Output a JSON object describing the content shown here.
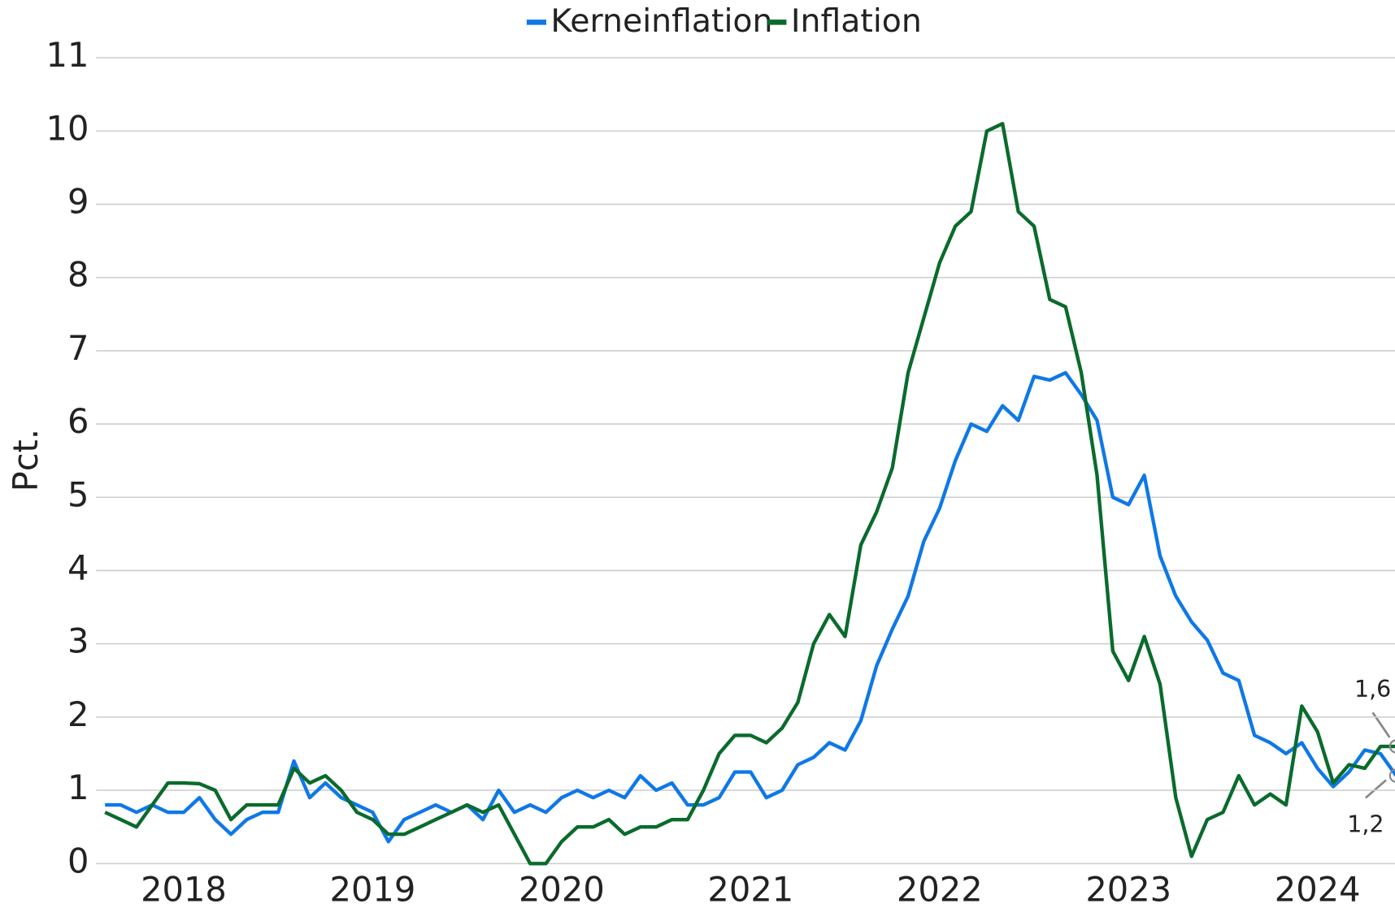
{
  "chart_data": {
    "type": "line",
    "y_label": "Pct.",
    "categories": [
      null,
      null,
      null,
      null,
      null,
      "2018",
      null,
      null,
      null,
      null,
      null,
      null,
      null,
      null,
      null,
      null,
      null,
      "2019",
      null,
      null,
      null,
      null,
      null,
      null,
      null,
      null,
      null,
      null,
      null,
      "2020",
      null,
      null,
      null,
      null,
      null,
      null,
      null,
      null,
      null,
      null,
      null,
      "2021",
      null,
      null,
      null,
      null,
      null,
      null,
      null,
      null,
      null,
      null,
      null,
      "2022",
      null,
      null,
      null,
      null,
      null,
      null,
      null,
      null,
      null,
      null,
      null,
      "2023",
      null,
      null,
      null,
      null,
      null,
      null,
      null,
      null,
      null,
      null,
      null,
      "2024",
      null,
      null,
      null,
      null,
      null
    ],
    "series": [
      {
        "name": "Kerneinflation",
        "color": "#0f78e6",
        "values": [
          0.8,
          0.8,
          0.7,
          0.8,
          0.7,
          0.7,
          0.9,
          0.6,
          0.4,
          0.6,
          0.7,
          0.7,
          1.4,
          0.9,
          1.1,
          0.9,
          0.8,
          0.7,
          0.3,
          0.6,
          0.7,
          0.8,
          0.7,
          0.8,
          0.6,
          1.0,
          0.7,
          0.8,
          0.7,
          0.9,
          1.0,
          0.9,
          1.0,
          0.9,
          1.2,
          1.0,
          1.1,
          0.8,
          0.8,
          0.9,
          1.25,
          1.25,
          0.9,
          1.0,
          1.35,
          1.45,
          1.65,
          1.55,
          1.95,
          2.7,
          3.2,
          3.65,
          4.4,
          4.85,
          5.5,
          6.0,
          5.9,
          6.25,
          6.05,
          6.65,
          6.6,
          6.7,
          6.4,
          6.05,
          5.0,
          4.9,
          5.3,
          4.2,
          3.65,
          3.3,
          3.05,
          2.6,
          2.5,
          1.75,
          1.65,
          1.5,
          1.65,
          1.3,
          1.05,
          1.25,
          1.55,
          1.5,
          1.2
        ]
      },
      {
        "name": "Inflation",
        "color": "#0a6b2c",
        "values": [
          0.7,
          0.6,
          0.5,
          0.8,
          1.1,
          1.1,
          1.09,
          1.0,
          0.6,
          0.8,
          0.8,
          0.8,
          1.3,
          1.1,
          1.2,
          1.0,
          0.7,
          0.6,
          0.4,
          0.4,
          0.5,
          0.6,
          0.7,
          0.8,
          0.7,
          0.8,
          0.4,
          0.0,
          0.0,
          0.3,
          0.5,
          0.5,
          0.6,
          0.4,
          0.5,
          0.5,
          0.6,
          0.6,
          1.0,
          1.5,
          1.75,
          1.75,
          1.65,
          1.85,
          2.2,
          3.0,
          3.4,
          3.1,
          4.35,
          4.8,
          5.4,
          6.7,
          7.45,
          8.2,
          8.7,
          8.9,
          10.0,
          10.1,
          8.9,
          8.7,
          7.7,
          7.6,
          6.7,
          5.3,
          2.9,
          2.5,
          3.1,
          2.45,
          0.9,
          0.1,
          0.6,
          0.7,
          1.2,
          0.8,
          0.95,
          0.8,
          2.15,
          1.8,
          1.1,
          1.35,
          1.3,
          1.6,
          1.6
        ]
      }
    ],
    "ylim": [
      0,
      11
    ],
    "yticks": [
      0,
      1,
      2,
      3,
      4,
      5,
      6,
      7,
      8,
      9,
      10,
      11
    ],
    "grid": true,
    "legend": "top",
    "annotations": [
      "1,6",
      "1,2"
    ]
  }
}
